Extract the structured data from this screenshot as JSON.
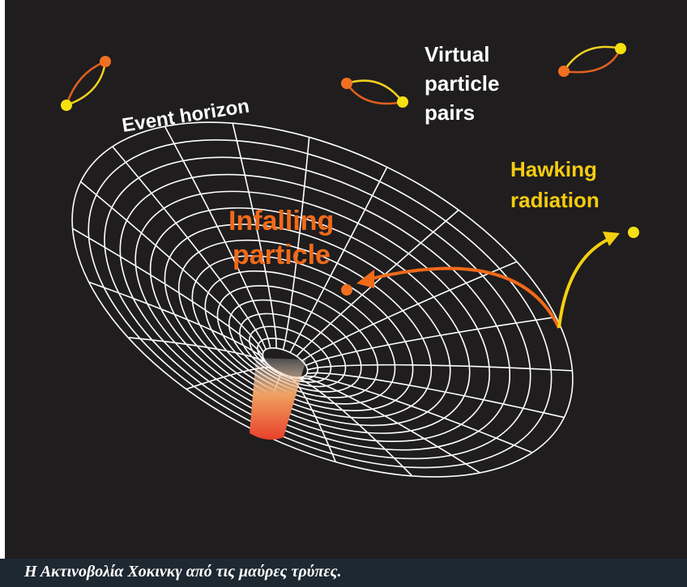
{
  "labels": {
    "virtual": [
      "Virtual",
      "particle",
      "pairs"
    ],
    "event_horizon": "Event horizon",
    "hawking": [
      "Hawking",
      "radiation"
    ],
    "infalling": [
      "Infalling",
      "particle"
    ]
  },
  "caption": "Η Ακτινοβολία Χοκινκγ από τις μαύρες τρύπες."
}
